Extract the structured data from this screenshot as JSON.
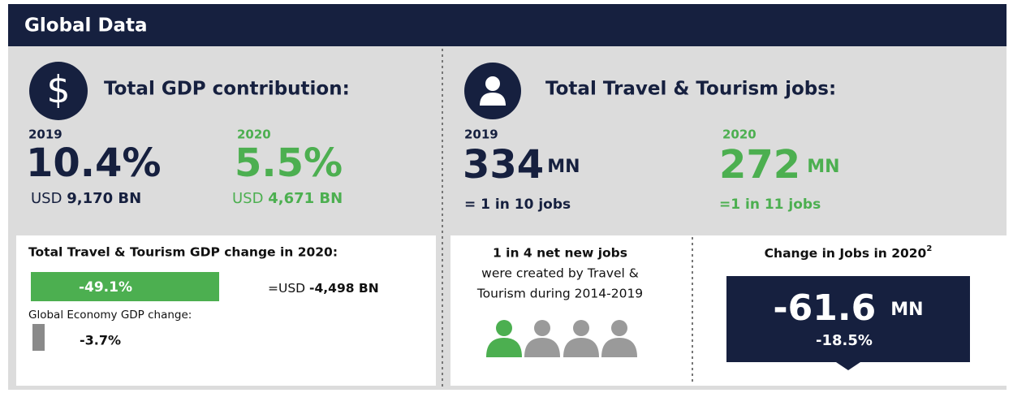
{
  "header": {
    "title": "Global Data"
  },
  "gdp": {
    "title": "Total GDP contribution:",
    "y2019": {
      "year": "2019",
      "share": "10.4%",
      "currency": "USD",
      "amount": "9,170 BN"
    },
    "y2020": {
      "year": "2020",
      "share": "5.5%",
      "currency": "USD",
      "amount": "4,671 BN"
    },
    "change": {
      "title": "Total Travel & Tourism GDP change in 2020:",
      "tt_change": "-49.1%",
      "usd_prefix": "=USD",
      "usd_amount": "-4,498 BN",
      "economy_label": "Global Economy GDP change:",
      "economy_change": "-3.7%"
    }
  },
  "jobs": {
    "title": "Total Travel & Tourism jobs:",
    "y2019": {
      "year": "2019",
      "number": "334",
      "unit": "MN",
      "ratio": "= 1 in 10 jobs"
    },
    "y2020": {
      "year": "2020",
      "number": "272",
      "unit": "MN",
      "ratio": "=1 in 11 jobs"
    },
    "net_new": {
      "lines": [
        "1 in 4 net new jobs",
        "were created by Travel &",
        "Tourism during 2014-2019"
      ]
    },
    "change": {
      "title": "Change in Jobs in 2020",
      "footnote": "2",
      "number": "-61.6",
      "unit": "MN",
      "percent": "-18.5%"
    }
  }
}
